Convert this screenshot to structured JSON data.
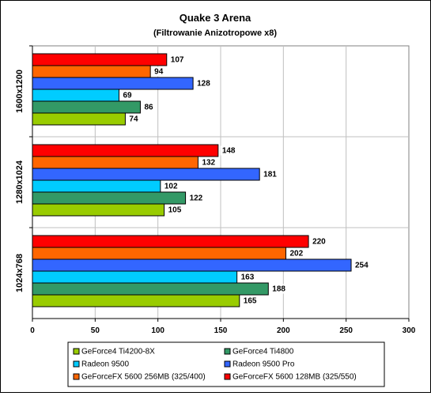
{
  "chart_data": {
    "type": "bar",
    "orientation": "horizontal",
    "title": "Quake 3 Arena",
    "subtitle": "(Filtrowanie Anizotropowe x8)",
    "categories": [
      "1600x1200",
      "1280x1024",
      "1024x768"
    ],
    "series": [
      {
        "name": "GeForceFX 5600 128MB (325/550)",
        "color": "#ff0000",
        "values": [
          107,
          148,
          220
        ]
      },
      {
        "name": "GeForceFX 5600 256MB (325/400)",
        "color": "#ff6600",
        "values": [
          94,
          132,
          202
        ]
      },
      {
        "name": "Radeon 9500 Pro",
        "color": "#3366ff",
        "values": [
          128,
          181,
          254
        ]
      },
      {
        "name": "Radeon 9500",
        "color": "#00ccff",
        "values": [
          69,
          102,
          163
        ]
      },
      {
        "name": "GeForce4 Ti4800",
        "color": "#339966",
        "values": [
          86,
          122,
          188
        ]
      },
      {
        "name": "GeForce4 Ti4200-8X",
        "color": "#99cc00",
        "values": [
          74,
          105,
          165
        ]
      }
    ],
    "xlim": [
      0,
      300
    ],
    "xticks": [
      "0",
      "50",
      "100",
      "150",
      "200",
      "250",
      "300"
    ],
    "grid": true,
    "legend_position": "bottom",
    "legend_order": [
      "GeForce4 Ti4200-8X",
      "GeForce4 Ti4800",
      "Radeon 9500",
      "Radeon 9500 Pro",
      "GeForceFX 5600 256MB (325/400)",
      "GeForceFX 5600 128MB (325/550)"
    ]
  }
}
